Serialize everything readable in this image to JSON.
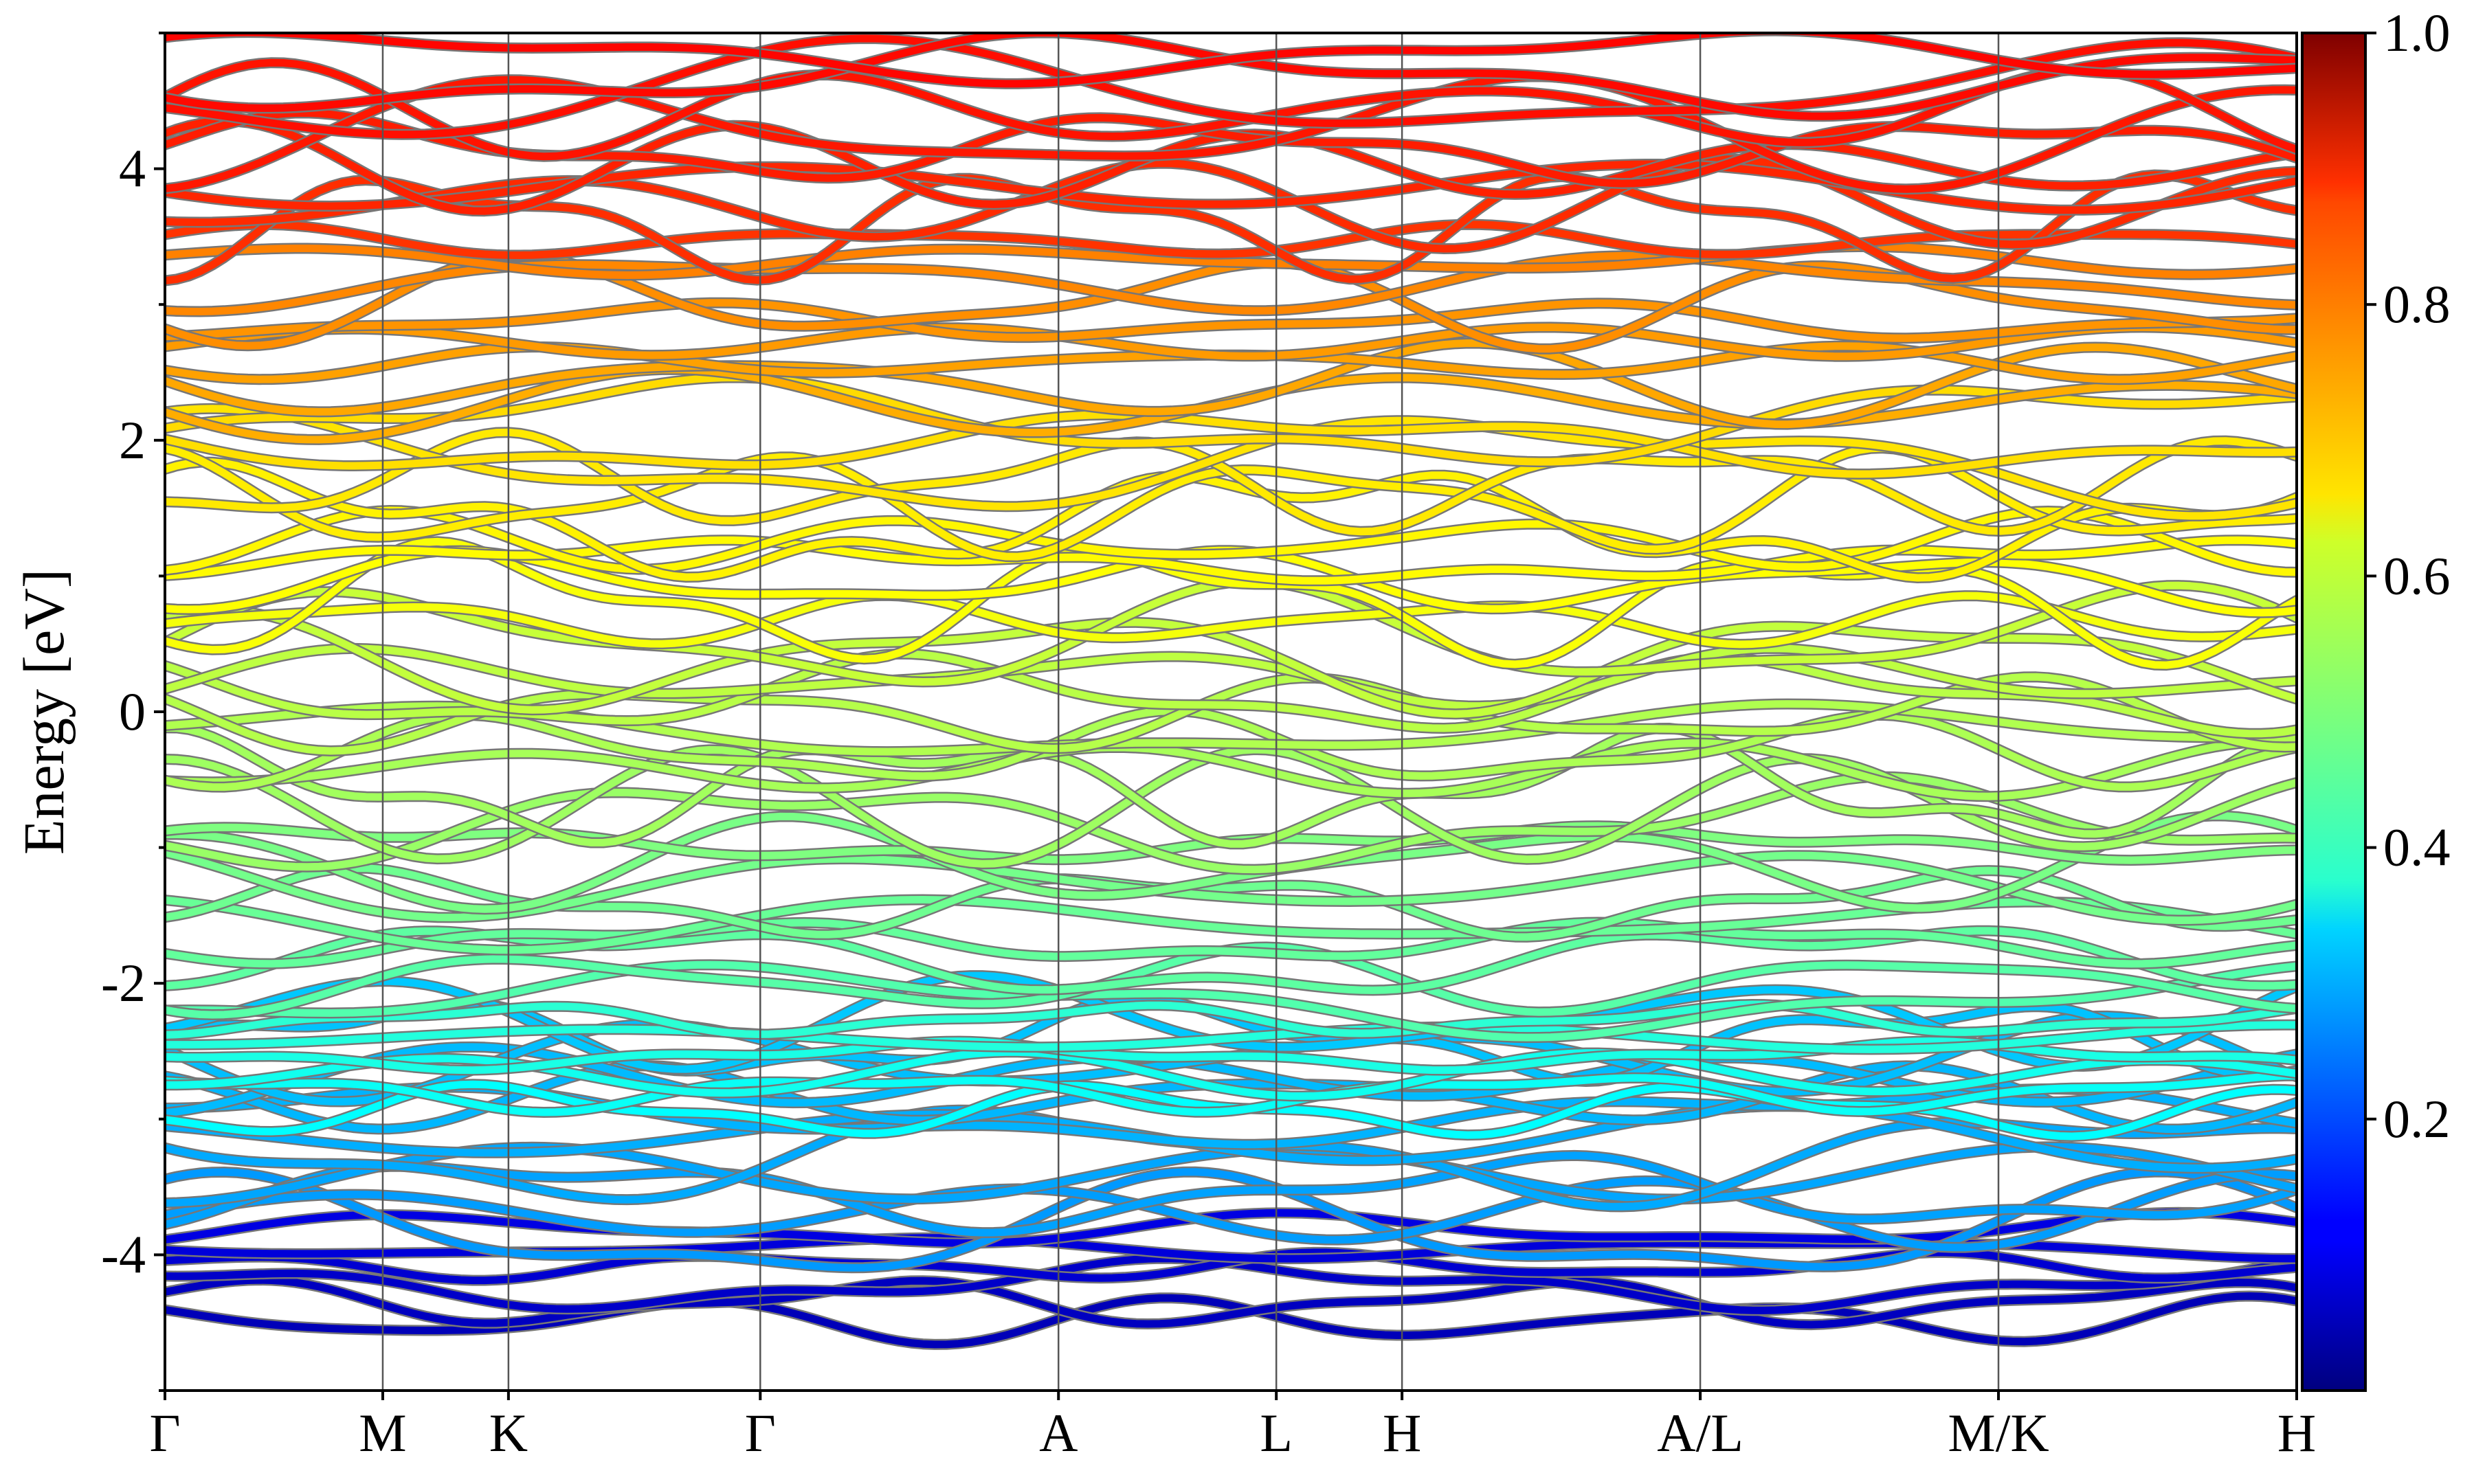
{
  "chart_data": {
    "type": "line",
    "title": "",
    "xlabel": "",
    "ylabel": "Energy [eV]",
    "ylim": [
      -5,
      5
    ],
    "yticks": [
      "-4",
      "-2",
      "0",
      "2",
      "4"
    ],
    "ytick_values": [
      -4,
      -2,
      0,
      2,
      4
    ],
    "kpath": [
      {
        "label": "Γ",
        "x": 0.0
      },
      {
        "label": "M",
        "x": 0.577
      },
      {
        "label": "K",
        "x": 0.91
      },
      {
        "label": "Γ",
        "x": 1.577
      },
      {
        "label": "A",
        "x": 2.367
      },
      {
        "label": "L",
        "x": 2.944
      },
      {
        "label": "H",
        "x": 3.277
      },
      {
        "label": "A/L",
        "x": 4.067
      },
      {
        "label": "M/K",
        "x": 4.857
      },
      {
        "label": "H",
        "x": 5.647
      }
    ],
    "xlim": [
      0,
      5.647
    ],
    "colorbar": {
      "colormap": "jet",
      "range": [
        0.0,
        1.0
      ],
      "ticks": [
        "0.2",
        "0.4",
        "0.6",
        "0.8",
        "1.0"
      ],
      "tick_values": [
        0.2,
        0.4,
        0.6,
        0.8,
        1.0
      ]
    },
    "band_groups": [
      {
        "range_eV": [
          -4.55,
          -3.75
        ],
        "weight": 0.08
      },
      {
        "range_eV": [
          -3.9,
          -2.2
        ],
        "weight": 0.3
      },
      {
        "range_eV": [
          -3.0,
          -2.2
        ],
        "weight": 0.4
      },
      {
        "range_eV": [
          -2.2,
          -0.9
        ],
        "weight": 0.48
      },
      {
        "range_eV": [
          -0.9,
          0.6
        ],
        "weight": 0.55
      },
      {
        "range_eV": [
          0.6,
          2.2
        ],
        "weight": 0.64
      },
      {
        "range_eV": [
          2.2,
          3.4
        ],
        "weight": 0.73
      },
      {
        "range_eV": [
          3.4,
          4.9
        ],
        "weight": 0.85
      }
    ],
    "grid": false,
    "legend": "none"
  }
}
